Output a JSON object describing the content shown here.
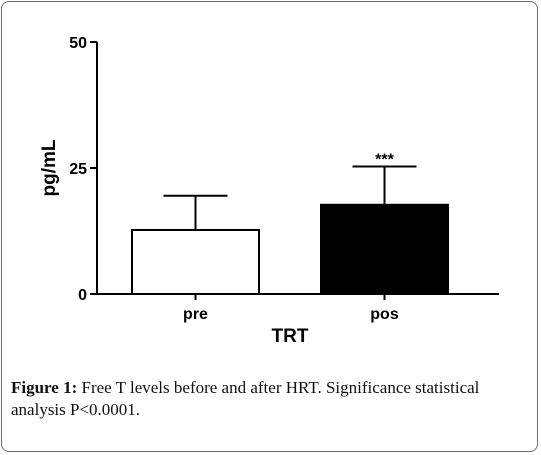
{
  "chart_data": {
    "type": "bar",
    "categories": [
      "pre",
      "pos"
    ],
    "values": [
      12.7,
      17.7
    ],
    "error_upper": [
      19.5,
      25.3
    ],
    "bar_fill": [
      "#ffffff",
      "#000000"
    ],
    "bar_stroke": "#000000",
    "annotations": [
      {
        "category": "pos",
        "text": "***"
      }
    ],
    "xlabel": "TRT",
    "ylabel": "pg/mL",
    "ylim": [
      0,
      50
    ],
    "yticks": [
      0,
      25,
      50
    ],
    "grid": false
  },
  "caption": {
    "label": "Figure 1:",
    "text": "Free T levels before and after HRT. Significance statistical analysis P<0.0001."
  }
}
